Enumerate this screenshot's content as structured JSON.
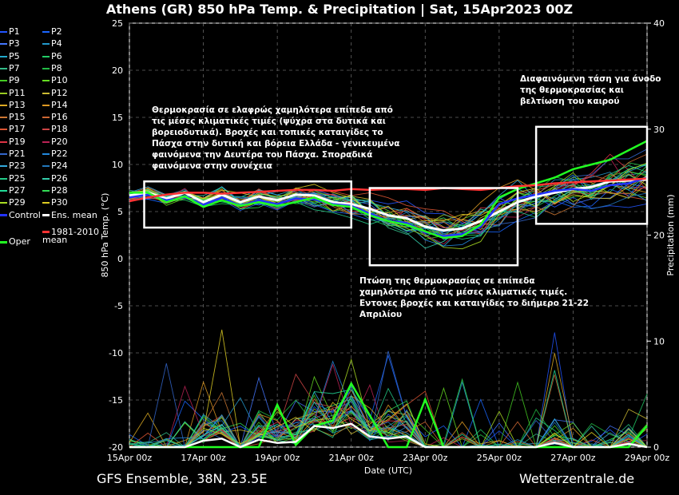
{
  "title": "Athens  (GR)  850 hPa Temp. & Precipitation | Sat, 15Apr2023 00Z",
  "footer": {
    "left": "GFS Ensemble, 38N, 23.5E",
    "right": "Wetterzentrale.de"
  },
  "legend": [
    {
      "label": "P1",
      "color": "#2255ff"
    },
    {
      "label": "P2",
      "color": "#1a66ff"
    },
    {
      "label": "P3",
      "color": "#4477ff"
    },
    {
      "label": "P4",
      "color": "#2299cc"
    },
    {
      "label": "P5",
      "color": "#22aacc"
    },
    {
      "label": "P6",
      "color": "#22cc66"
    },
    {
      "label": "P7",
      "color": "#33bb88"
    },
    {
      "label": "P8",
      "color": "#22bb44"
    },
    {
      "label": "P9",
      "color": "#44cc22"
    },
    {
      "label": "P10",
      "color": "#66dd22"
    },
    {
      "label": "P11",
      "color": "#99cc22"
    },
    {
      "label": "P12",
      "color": "#ccbb33"
    },
    {
      "label": "P13",
      "color": "#ddaa22"
    },
    {
      "label": "P14",
      "color": "#dd9922"
    },
    {
      "label": "P15",
      "color": "#cc7733"
    },
    {
      "label": "P16",
      "color": "#cc6633"
    },
    {
      "label": "P17",
      "color": "#dd5533"
    },
    {
      "label": "P18",
      "color": "#cc4444"
    },
    {
      "label": "P19",
      "color": "#dd3344"
    },
    {
      "label": "P20",
      "color": "#bb2255"
    },
    {
      "label": "P21",
      "color": "#3366cc"
    },
    {
      "label": "P22",
      "color": "#2288dd"
    },
    {
      "label": "P23",
      "color": "#33aadd"
    },
    {
      "label": "P24",
      "color": "#2277bb"
    },
    {
      "label": "P25",
      "color": "#22cc88"
    },
    {
      "label": "P26",
      "color": "#33ccaa"
    },
    {
      "label": "P27",
      "color": "#22dd99"
    },
    {
      "label": "P28",
      "color": "#33dd55"
    },
    {
      "label": "P29",
      "color": "#aadd22"
    },
    {
      "label": "P30",
      "color": "#ddcc22"
    },
    {
      "label": "Control",
      "color": "#2233ff"
    },
    {
      "label": "Ens. mean",
      "color": "#ffffff"
    },
    {
      "label": "Oper",
      "color": "#22ff22"
    },
    {
      "label": "1981-2010\nmean",
      "color": "#ff3333"
    }
  ],
  "annotations": [
    "Θερμοκρασία σε ελαφρώς χαμηλότερα επίπεδα από\nτις μέσες κλιματικές τιμές (ψύχρα στα δυτικά και\nβορειοδυτικά). Βροχές και τοπικές καταιγίδες το\nΠάσχα στην δυτική και βόρεια Ελλάδα - γενικευμένα\nφαινόμενα την Δευτέρα του Πάσχα. Σποραδικά\nφαινόμενα στην συνέχεια",
    "Πτώση της θερμοκρασίας σε επίπεδα\nχαμηλότερα από τις μέσες κλιματικές τιμές.\nΕντονες βροχές και καταιγίδες το διήμερο 21-22\nΑπριλίου",
    "Διαφαινόμενη τάση για άνοδο\nτης θερμοκρασίας και\nβελτίωση του καιρού"
  ],
  "chart_data": {
    "type": "line",
    "xlabel": "Date (UTC)",
    "ylabel": "850 hPa Temp. (°C)",
    "y2label": "Precipitation (mm)",
    "ylim": [
      -20,
      25
    ],
    "y2lim": [
      0,
      40
    ],
    "yticks": [
      -20,
      -15,
      -10,
      -5,
      0,
      5,
      10,
      15,
      20,
      25
    ],
    "y2ticks": [
      0,
      10,
      20,
      30,
      40
    ],
    "xlim": [
      "15Apr 00z",
      "29Apr 00z"
    ],
    "xticks": [
      "15Apr 00z",
      "17Apr 00z",
      "19Apr 00z",
      "21Apr 00z",
      "23Apr 00z",
      "25Apr 00z",
      "27Apr 00z",
      "29Apr 00z"
    ],
    "grid": true,
    "x_days": [
      0,
      0.5,
      1,
      1.5,
      2,
      2.5,
      3,
      3.5,
      4,
      4.5,
      5,
      5.5,
      6,
      6.5,
      7,
      7.5,
      8,
      8.5,
      9,
      9.5,
      10,
      10.5,
      11,
      11.5,
      12,
      12.5,
      13,
      13.5,
      14
    ],
    "series": [
      {
        "name": "Ens. mean",
        "color": "#ffffff",
        "values": [
          6.7,
          7.0,
          6.4,
          7.0,
          6.0,
          6.8,
          6.0,
          6.6,
          6.2,
          6.8,
          6.7,
          6.0,
          5.8,
          5.3,
          4.6,
          4.3,
          3.4,
          3.0,
          3.2,
          4.0,
          5.0,
          6.0,
          6.6,
          7.0,
          7.4,
          7.6,
          8.2,
          8.3,
          8.4
        ]
      },
      {
        "name": "Control",
        "color": "#2233ff",
        "values": [
          6.5,
          6.8,
          6.2,
          6.5,
          5.7,
          6.5,
          5.6,
          6.2,
          5.8,
          6.4,
          6.3,
          5.8,
          5.6,
          4.8,
          4.0,
          3.8,
          2.8,
          2.4,
          2.6,
          3.4,
          5.8,
          6.4,
          6.8,
          7.2,
          7.4,
          7.2,
          7.8,
          8.0,
          8.6
        ]
      },
      {
        "name": "Oper",
        "color": "#22ff22",
        "values": [
          7.0,
          7.0,
          6.0,
          6.6,
          5.5,
          6.2,
          5.6,
          6.0,
          5.6,
          6.0,
          6.5,
          5.7,
          5.5,
          4.6,
          4.0,
          3.6,
          2.9,
          2.2,
          2.4,
          3.6,
          6.5,
          7.4,
          8.0,
          8.6,
          9.5,
          10.0,
          10.5,
          11.5,
          12.5
        ]
      },
      {
        "name": "1981-2010 mean",
        "color": "#ff3333",
        "values": [
          6.1,
          6.5,
          6.8,
          7.0,
          7.0,
          6.9,
          7.0,
          7.1,
          7.2,
          7.3,
          7.3,
          7.2,
          7.4,
          7.3,
          7.4,
          7.4,
          7.3,
          7.5,
          7.4,
          7.3,
          7.5,
          7.7,
          7.8,
          8.0,
          8.1,
          8.2,
          8.3,
          8.4,
          8.5
        ]
      }
    ],
    "precipitation": {
      "ens_mean": [
        0,
        0,
        0,
        0,
        0.6,
        0.8,
        0,
        0.7,
        0.4,
        0.5,
        2.0,
        1.8,
        2.2,
        1.0,
        0.8,
        1.0,
        0,
        0,
        0,
        0,
        0,
        0,
        0,
        0.4,
        0,
        0,
        0,
        0.3,
        0
      ],
      "oper": [
        0,
        0,
        0,
        0,
        0,
        0,
        0,
        0,
        4.0,
        0.2,
        2.0,
        2.5,
        6.0,
        3.0,
        0,
        0,
        4.5,
        0,
        0,
        0,
        0,
        0,
        0,
        0,
        0,
        0,
        0,
        0,
        2.0
      ]
    },
    "highlight_boxes": [
      {
        "from_day": 0.4,
        "to_day": 6.0,
        "y_low": 3.3,
        "y_high": 8.2
      },
      {
        "from_day": 6.5,
        "to_day": 10.5,
        "y_low": -0.7,
        "y_high": 7.5
      },
      {
        "from_day": 11.0,
        "to_day": 14.0,
        "y_low": 3.7,
        "y_high": 14.0
      }
    ]
  }
}
